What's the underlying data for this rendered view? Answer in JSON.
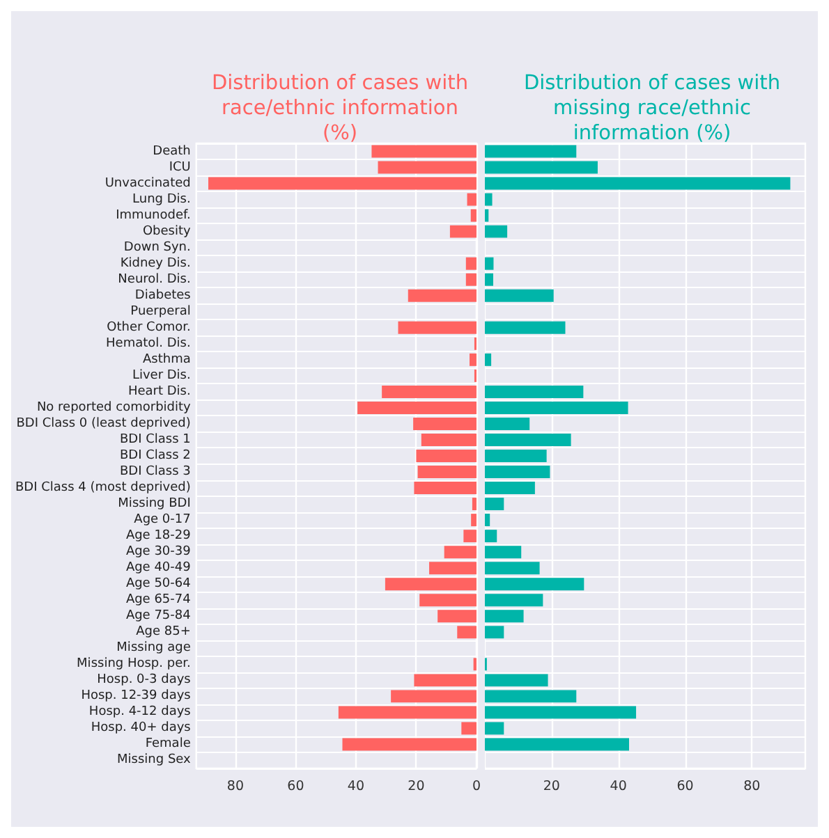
{
  "chart_data": [
    {
      "type": "bar",
      "orientation": "horizontal",
      "title": "Distribution of cases with\nrace/ethnic information\n(%)",
      "categories": [
        "Death",
        "ICU",
        "Unvaccinated",
        "Lung Dis.",
        "Immunodef.",
        "Obesity",
        "Down Syn.",
        "Kidney Dis.",
        "Neurol. Dis.",
        "Diabetes",
        "Puerperal",
        "Other Comor.",
        "Hematol. Dis.",
        "Asthma",
        "Liver Dis.",
        "Heart Dis.",
        "No reported comorbidity",
        "BDI Class 0 (least deprived)",
        "BDI Class 1",
        "BDI Class 2",
        "BDI Class 3",
        "BDI Class 4 (most deprived)",
        "Missing BDI",
        "Age 0-17",
        "Age 18-29",
        "Age 30-39",
        "Age 40-49",
        "Age 50-64",
        "Age 65-74",
        "Age 75-84",
        "Age 85+",
        "Missing age",
        "Missing Hosp. per.",
        "Hosp. 0-3 days",
        "Hosp. 12-39 days",
        "Hosp. 4-12 days",
        "Hosp. 40+ days",
        "Female",
        "Missing Sex"
      ],
      "series": [
        {
          "color": "#ff6361",
          "values": [
            34.8,
            32.7,
            89.0,
            3.1,
            1.9,
            8.8,
            0,
            3.5,
            3.5,
            22.7,
            0,
            26.0,
            0.7,
            2.3,
            0.7,
            31.4,
            39.5,
            21.0,
            18.3,
            20.0,
            19.5,
            20.7,
            1.4,
            1.8,
            4.3,
            10.7,
            15.7,
            30.3,
            18.9,
            12.9,
            6.4,
            0,
            1.0,
            20.7,
            28.4,
            45.8,
            5.0,
            44.5,
            0
          ]
        }
      ],
      "xlim": [
        93,
        0
      ],
      "xticks": [
        80,
        60,
        40,
        20,
        0
      ],
      "grid": true
    },
    {
      "type": "bar",
      "orientation": "horizontal",
      "title": "Distribution of cases with\nmissing race/ethnic\ninformation (%)",
      "categories": [
        null,
        null,
        null,
        null,
        null,
        null,
        null,
        null,
        null,
        null,
        null,
        null,
        null,
        null,
        null,
        null,
        null,
        null,
        null,
        null,
        null,
        null,
        null,
        null,
        null,
        null,
        null,
        null,
        null,
        null,
        null,
        null,
        null,
        null,
        null,
        null,
        null,
        null,
        null
      ],
      "series": [
        {
          "color": "#00b5a9",
          "values": [
            27.4,
            33.8,
            91.5,
            2.2,
            1.1,
            6.7,
            0,
            2.6,
            2.5,
            20.6,
            0,
            24.1,
            0,
            1.9,
            0,
            29.5,
            42.9,
            13.4,
            25.8,
            18.5,
            19.5,
            15.0,
            5.7,
            1.5,
            3.6,
            10.9,
            16.4,
            29.7,
            17.4,
            11.6,
            5.7,
            0,
            0.6,
            18.9,
            27.4,
            45.3,
            5.7,
            43.2,
            0
          ]
        }
      ],
      "xlim": [
        0,
        96
      ],
      "xticks": [
        20,
        40,
        60,
        80
      ],
      "grid": true,
      "tick_labels": "x"
    }
  ]
}
